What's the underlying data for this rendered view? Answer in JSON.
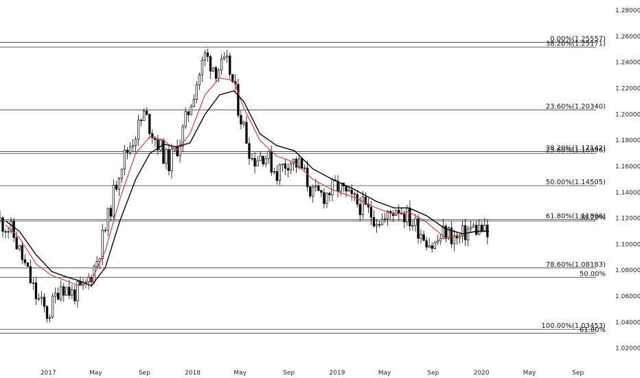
{
  "chart_data": {
    "type": "candlestick",
    "title": "",
    "grid": false,
    "x_axis": {
      "range": [
        "2016-09-01",
        "2020-10-20"
      ],
      "tick_labels": [
        {
          "date": "2017-01-01",
          "label": "2017"
        },
        {
          "date": "2017-05-01",
          "label": "May"
        },
        {
          "date": "2017-09-01",
          "label": "Sep"
        },
        {
          "date": "2018-01-01",
          "label": "2018"
        },
        {
          "date": "2018-05-01",
          "label": "May"
        },
        {
          "date": "2018-09-01",
          "label": "Sep"
        },
        {
          "date": "2019-01-01",
          "label": "2019"
        },
        {
          "date": "2019-05-01",
          "label": "May"
        },
        {
          "date": "2019-09-01",
          "label": "Sep"
        },
        {
          "date": "2020-01-01",
          "label": "2020"
        },
        {
          "date": "2020-05-01",
          "label": "May"
        },
        {
          "date": "2020-09-01",
          "label": "Sep"
        }
      ]
    },
    "y_axis": {
      "range": [
        1.014,
        1.288
      ],
      "ticks": [
        "1.28000",
        "1.26000",
        "1.24000",
        "1.22000",
        "1.20000",
        "1.18000",
        "1.16000",
        "1.14000",
        "1.12000",
        "1.10000",
        "1.08000",
        "1.06000",
        "1.04000",
        "1.02000"
      ]
    },
    "fib_levels": [
      {
        "value": 1.2555,
        "label": "0.00%(1.25557)"
      },
      {
        "value": 1.2517,
        "label": "38.20%(1.25171)"
      },
      {
        "value": 1.2034,
        "label": "23.60%(1.20340)"
      },
      {
        "value": 1.1714,
        "label": "38.20%(1.17142)"
      },
      {
        "value": 1.1699,
        "label": "23.60%(1.16996)"
      },
      {
        "value": 1.1451,
        "label": "50.00%(1.14505)"
      },
      {
        "value": 1.119,
        "label": "61.80%(1.11896)"
      },
      {
        "value": 1.118,
        "label": "38.20%"
      },
      {
        "value": 1.0818,
        "label": "78.60%(1.08183)"
      },
      {
        "value": 1.0745,
        "label": "50.00%"
      },
      {
        "value": 1.0345,
        "label": "100.00%(1.03453)"
      },
      {
        "value": 1.0315,
        "label": "61.80%"
      }
    ],
    "price_path": [
      [
        "2016-09-01",
        1.118
      ],
      [
        "2016-10-01",
        1.11
      ],
      [
        "2016-11-01",
        1.085
      ],
      [
        "2016-12-01",
        1.06
      ],
      [
        "2017-01-01",
        1.045
      ],
      [
        "2017-02-01",
        1.07
      ],
      [
        "2017-03-01",
        1.062
      ],
      [
        "2017-04-01",
        1.065
      ],
      [
        "2017-05-01",
        1.085
      ],
      [
        "2017-06-01",
        1.12
      ],
      [
        "2017-07-01",
        1.16
      ],
      [
        "2017-08-01",
        1.18
      ],
      [
        "2017-09-01",
        1.2
      ],
      [
        "2017-10-01",
        1.18
      ],
      [
        "2017-11-01",
        1.162
      ],
      [
        "2017-12-01",
        1.18
      ],
      [
        "2018-01-01",
        1.215
      ],
      [
        "2018-02-01",
        1.245
      ],
      [
        "2018-03-01",
        1.235
      ],
      [
        "2018-04-01",
        1.238
      ],
      [
        "2018-05-01",
        1.2
      ],
      [
        "2018-06-01",
        1.165
      ],
      [
        "2018-07-01",
        1.17
      ],
      [
        "2018-08-01",
        1.155
      ],
      [
        "2018-09-01",
        1.165
      ],
      [
        "2018-10-01",
        1.16
      ],
      [
        "2018-11-01",
        1.138
      ],
      [
        "2018-12-01",
        1.138
      ],
      [
        "2019-01-01",
        1.145
      ],
      [
        "2019-02-01",
        1.135
      ],
      [
        "2019-03-01",
        1.13
      ],
      [
        "2019-04-01",
        1.122
      ],
      [
        "2019-05-01",
        1.118
      ],
      [
        "2019-06-01",
        1.13
      ],
      [
        "2019-07-01",
        1.12
      ],
      [
        "2019-08-01",
        1.11
      ],
      [
        "2019-09-01",
        1.098
      ],
      [
        "2019-10-01",
        1.11
      ],
      [
        "2019-11-01",
        1.103
      ],
      [
        "2019-12-01",
        1.112
      ],
      [
        "2020-01-01",
        1.112
      ],
      [
        "2020-01-20",
        1.104
      ]
    ],
    "series": [
      {
        "color": "#e53935",
        "line_width": 1.2,
        "points": [
          [
            "2016-09-15",
            1.115
          ],
          [
            "2016-10-20",
            1.105
          ],
          [
            "2016-12-01",
            1.085
          ],
          [
            "2017-01-10",
            1.076
          ],
          [
            "2017-02-15",
            1.072
          ],
          [
            "2017-03-20",
            1.068
          ],
          [
            "2017-04-20",
            1.072
          ],
          [
            "2017-05-25",
            1.095
          ],
          [
            "2017-07-01",
            1.135
          ],
          [
            "2017-08-10",
            1.17
          ],
          [
            "2017-09-15",
            1.183
          ],
          [
            "2017-10-20",
            1.18
          ],
          [
            "2017-11-20",
            1.172
          ],
          [
            "2017-12-25",
            1.185
          ],
          [
            "2018-02-01",
            1.215
          ],
          [
            "2018-03-10",
            1.228
          ],
          [
            "2018-04-15",
            1.226
          ],
          [
            "2018-05-10",
            1.205
          ],
          [
            "2018-06-20",
            1.18
          ],
          [
            "2018-08-01",
            1.168
          ],
          [
            "2018-09-15",
            1.163
          ],
          [
            "2018-11-01",
            1.15
          ],
          [
            "2018-12-20",
            1.142
          ],
          [
            "2019-02-15",
            1.136
          ],
          [
            "2019-04-10",
            1.128
          ],
          [
            "2019-05-25",
            1.123
          ],
          [
            "2019-07-01",
            1.125
          ],
          [
            "2019-08-15",
            1.117
          ],
          [
            "2019-10-01",
            1.105
          ],
          [
            "2019-11-15",
            1.108
          ],
          [
            "2019-12-20",
            1.11
          ],
          [
            "2020-01-20",
            1.11
          ]
        ]
      },
      {
        "color": "#000000",
        "line_width": 1.4,
        "points": [
          [
            "2016-09-15",
            1.118
          ],
          [
            "2016-10-20",
            1.11
          ],
          [
            "2016-12-01",
            1.092
          ],
          [
            "2017-01-10",
            1.079
          ],
          [
            "2017-02-15",
            1.075
          ],
          [
            "2017-03-20",
            1.072
          ],
          [
            "2017-04-20",
            1.068
          ],
          [
            "2017-05-25",
            1.082
          ],
          [
            "2017-07-01",
            1.118
          ],
          [
            "2017-08-10",
            1.15
          ],
          [
            "2017-09-15",
            1.17
          ],
          [
            "2017-10-20",
            1.177
          ],
          [
            "2017-11-20",
            1.175
          ],
          [
            "2017-12-25",
            1.178
          ],
          [
            "2018-02-01",
            1.2
          ],
          [
            "2018-03-10",
            1.215
          ],
          [
            "2018-04-15",
            1.218
          ],
          [
            "2018-05-10",
            1.21
          ],
          [
            "2018-06-20",
            1.185
          ],
          [
            "2018-08-01",
            1.176
          ],
          [
            "2018-09-15",
            1.172
          ],
          [
            "2018-11-01",
            1.158
          ],
          [
            "2018-12-20",
            1.15
          ],
          [
            "2019-02-15",
            1.142
          ],
          [
            "2019-04-10",
            1.133
          ],
          [
            "2019-05-25",
            1.128
          ],
          [
            "2019-07-01",
            1.128
          ],
          [
            "2019-08-15",
            1.122
          ],
          [
            "2019-10-01",
            1.112
          ],
          [
            "2019-11-15",
            1.108
          ],
          [
            "2019-12-20",
            1.11
          ],
          [
            "2020-01-20",
            1.11
          ]
        ]
      }
    ],
    "candle_colors": {
      "up": "#ffffff",
      "down": "#000000",
      "outline": "#000000"
    }
  }
}
